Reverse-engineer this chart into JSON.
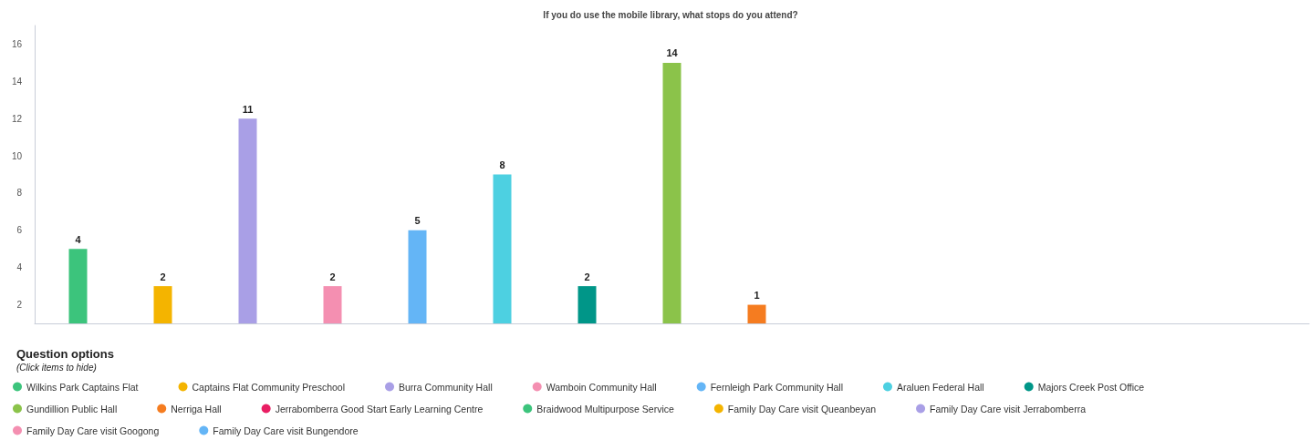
{
  "chart_data": {
    "type": "bar",
    "title": "If you do use the mobile library, what stops do you attend?",
    "categories": [
      null
    ],
    "series": [
      {
        "name": "Wilkins Park Captains Flat",
        "color": "#3cc47c",
        "values": [
          4
        ],
        "base": [
          1
        ]
      },
      {
        "name": "Captains Flat Community Preschool",
        "color": "#f4b400",
        "values": [
          2
        ],
        "base": [
          1
        ]
      },
      {
        "name": "Burra Community Hall",
        "color": "#a99fe6",
        "values": [
          11
        ],
        "base": [
          1
        ]
      },
      {
        "name": "Wamboin Community Hall",
        "color": "#f48fb1",
        "values": [
          2
        ],
        "base": [
          1
        ]
      },
      {
        "name": "Fernleigh Park Community Hall",
        "color": "#64b5f6",
        "values": [
          5
        ],
        "base": [
          1
        ]
      },
      {
        "name": "Araluen Federal Hall",
        "color": "#4dd0e1",
        "values": [
          8
        ],
        "base": [
          1
        ]
      },
      {
        "name": "Majors Creek Post Office",
        "color": "#009688",
        "values": [
          2
        ],
        "base": [
          1
        ]
      },
      {
        "name": "Gundillion Public Hall",
        "color": "#8bc34a",
        "values": [
          14
        ],
        "base": [
          1
        ]
      },
      {
        "name": "Nerriga Hall",
        "color": "#f57c20",
        "values": [
          1
        ],
        "base": [
          1
        ]
      },
      {
        "name": "Jerrabomberra Good Start Early Learning Centre",
        "color": "#e91e63",
        "values": [
          null
        ]
      },
      {
        "name": "Braidwood Multipurpose Service",
        "color": "#3cc47c",
        "values": [
          null
        ]
      },
      {
        "name": "Family Day Care visit Queanbeyan",
        "color": "#f4b400",
        "values": [
          null
        ]
      },
      {
        "name": "Family Day Care visit Jerrabomberra",
        "color": "#a99fe6",
        "values": [
          null
        ]
      },
      {
        "name": "Family Day Care visit Googong",
        "color": "#f48fb1",
        "values": [
          null
        ]
      },
      {
        "name": "Family Day Care visit Bungendore",
        "color": "#64b5f6",
        "values": [
          null
        ]
      }
    ],
    "ylim": [
      1,
      17
    ],
    "yticks": [
      2,
      4,
      6,
      8,
      10,
      12,
      14,
      16
    ],
    "data_labels": true,
    "grid": false,
    "legend": "bottom",
    "annotations": [
      "Question options",
      "(Click items to hide)"
    ]
  }
}
